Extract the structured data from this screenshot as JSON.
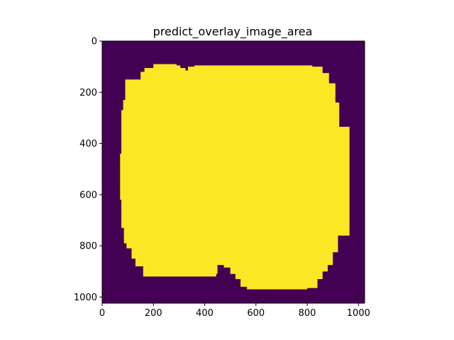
{
  "chart_data": {
    "type": "heatmap",
    "title": "predict_overlay_image_area",
    "image_size": [
      1024,
      1024
    ],
    "colormap": {
      "low": "#440154",
      "high": "#fde725"
    },
    "xlim": [
      0,
      1024
    ],
    "ylim": [
      1024,
      0
    ],
    "xticks": [
      0,
      200,
      400,
      600,
      800,
      1000
    ],
    "yticks": [
      0,
      200,
      400,
      600,
      800,
      1000
    ],
    "xtick_labels": [
      "0",
      "200",
      "400",
      "600",
      "800",
      "1000"
    ],
    "ytick_labels": [
      "0",
      "200",
      "400",
      "600",
      "800",
      "1000"
    ],
    "mask_region_outline": [
      [
        200,
        90
      ],
      [
        290,
        90
      ],
      [
        290,
        95
      ],
      [
        305,
        95
      ],
      [
        305,
        105
      ],
      [
        325,
        105
      ],
      [
        325,
        115
      ],
      [
        335,
        115
      ],
      [
        335,
        100
      ],
      [
        360,
        100
      ],
      [
        360,
        95
      ],
      [
        820,
        95
      ],
      [
        820,
        100
      ],
      [
        860,
        100
      ],
      [
        860,
        125
      ],
      [
        885,
        125
      ],
      [
        885,
        165
      ],
      [
        910,
        165
      ],
      [
        910,
        240
      ],
      [
        925,
        240
      ],
      [
        925,
        335
      ],
      [
        965,
        335
      ],
      [
        965,
        760
      ],
      [
        920,
        760
      ],
      [
        920,
        825
      ],
      [
        900,
        825
      ],
      [
        900,
        875
      ],
      [
        880,
        875
      ],
      [
        880,
        900
      ],
      [
        860,
        900
      ],
      [
        860,
        930
      ],
      [
        840,
        930
      ],
      [
        840,
        965
      ],
      [
        800,
        965
      ],
      [
        800,
        970
      ],
      [
        565,
        970
      ],
      [
        565,
        960
      ],
      [
        540,
        960
      ],
      [
        540,
        930
      ],
      [
        520,
        930
      ],
      [
        520,
        910
      ],
      [
        500,
        910
      ],
      [
        500,
        885
      ],
      [
        475,
        885
      ],
      [
        475,
        875
      ],
      [
        450,
        875
      ],
      [
        450,
        910
      ],
      [
        445,
        910
      ],
      [
        445,
        920
      ],
      [
        160,
        920
      ],
      [
        160,
        880
      ],
      [
        130,
        880
      ],
      [
        130,
        850
      ],
      [
        115,
        850
      ],
      [
        115,
        810
      ],
      [
        95,
        810
      ],
      [
        95,
        790
      ],
      [
        85,
        790
      ],
      [
        85,
        730
      ],
      [
        75,
        730
      ],
      [
        75,
        620
      ],
      [
        70,
        620
      ],
      [
        70,
        440
      ],
      [
        75,
        440
      ],
      [
        75,
        270
      ],
      [
        82,
        270
      ],
      [
        82,
        230
      ],
      [
        90,
        230
      ],
      [
        90,
        150
      ],
      [
        150,
        150
      ],
      [
        150,
        120
      ],
      [
        165,
        120
      ],
      [
        165,
        105
      ],
      [
        200,
        105
      ]
    ]
  }
}
